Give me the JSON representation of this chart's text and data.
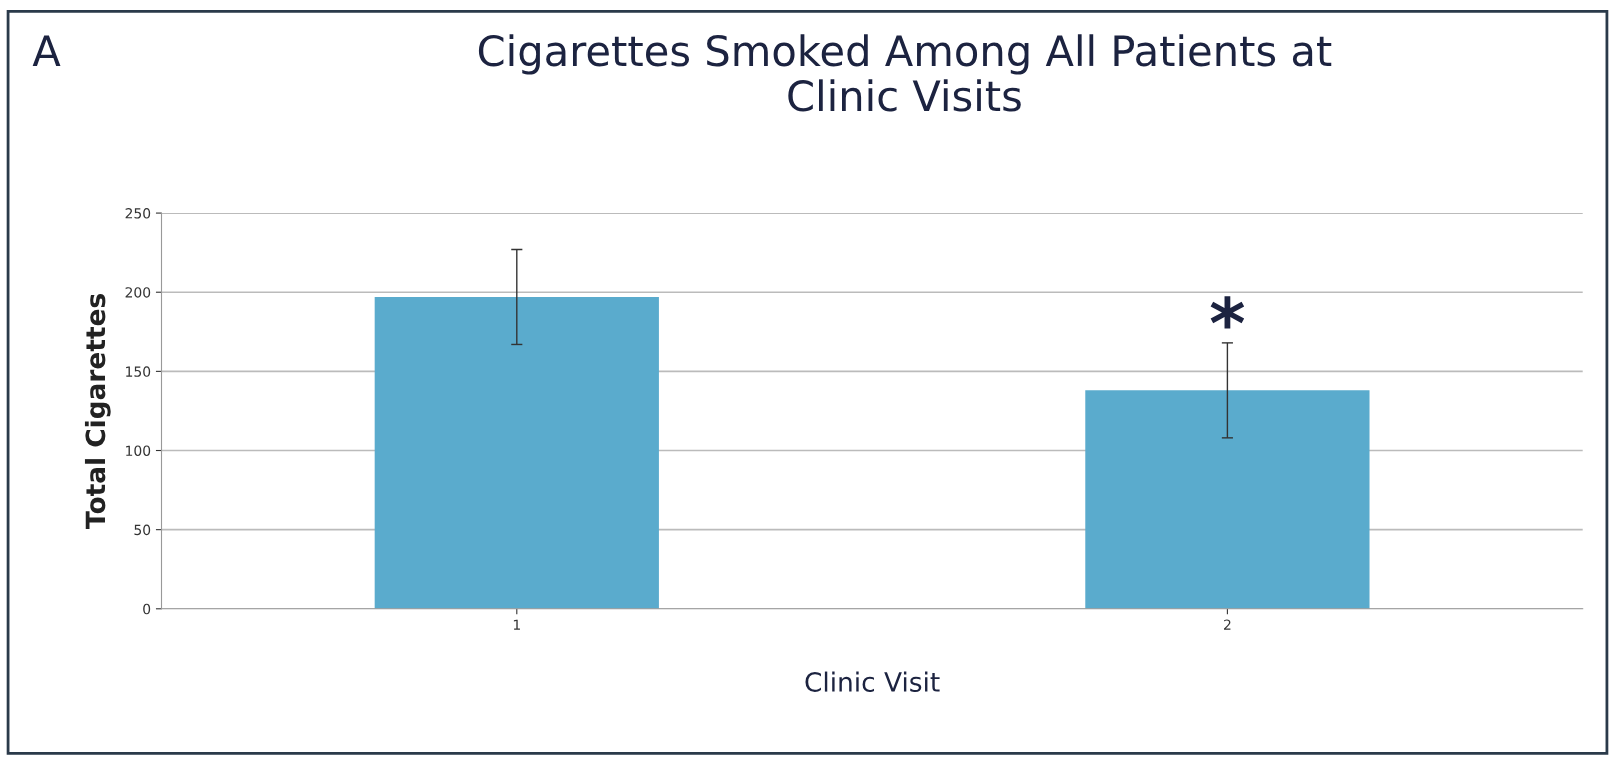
{
  "chart_data": {
    "type": "bar",
    "title": "Cigarettes Smoked Among All Patients at\nClinic Visits",
    "xlabel": "Clinic Visit",
    "ylabel": "Total Cigarettes",
    "categories": [
      "1",
      "2"
    ],
    "values": [
      197,
      138
    ],
    "errors": [
      30,
      30
    ],
    "color": "#5aabcd",
    "ylim": [
      0,
      250
    ],
    "yticks": [
      0,
      50,
      100,
      150,
      200,
      250
    ],
    "grid": "y",
    "annotations": [
      "A",
      "*"
    ]
  }
}
